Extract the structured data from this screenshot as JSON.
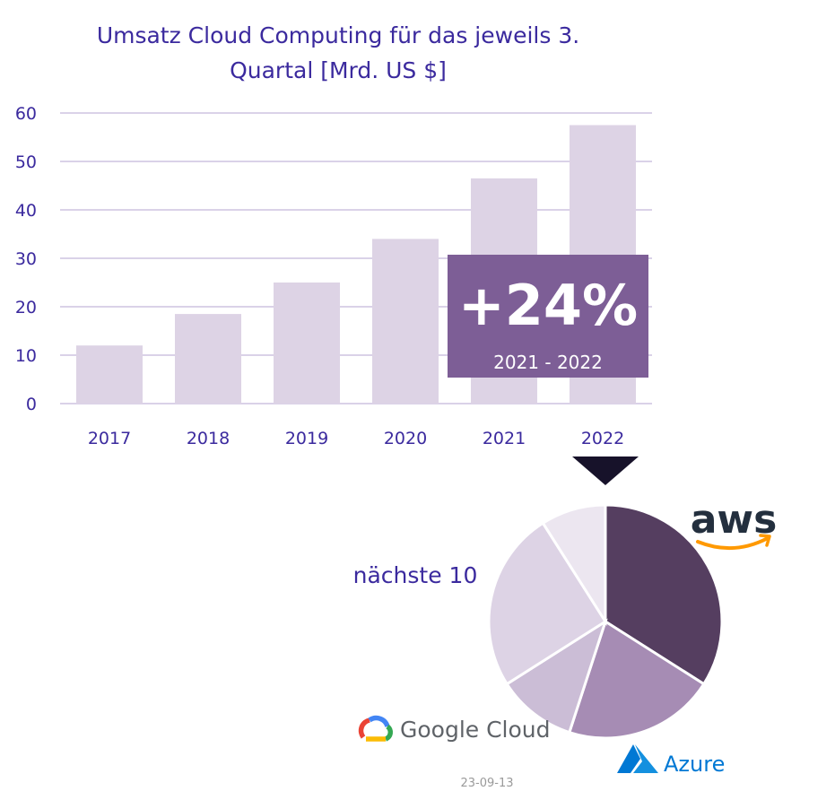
{
  "chart_data": [
    {
      "type": "bar",
      "title_lines": [
        "Umsatz Cloud Computing für das jeweils 3.",
        "Quartal [Mrd. US $]"
      ],
      "categories": [
        "2017",
        "2018",
        "2019",
        "2020",
        "2021",
        "2022"
      ],
      "values": [
        12,
        18.5,
        25,
        34,
        46.5,
        57.5
      ],
      "ylim": [
        0,
        60
      ],
      "yticks": [
        "0",
        "10",
        "20",
        "30",
        "40",
        "50",
        "60"
      ],
      "grid": true,
      "bar_color": "#ddd3e5",
      "gridline_color": "#cdc4e0",
      "callout": {
        "value": "+24%",
        "period": "2021 - 2022",
        "color": "#7d5e96"
      }
    },
    {
      "type": "pie",
      "slices": [
        {
          "label": "aws",
          "value": 34,
          "color": "#553e60"
        },
        {
          "label": "Azure",
          "value": 21,
          "color": "#a68cb4"
        },
        {
          "label": "Google Cloud",
          "value": 11,
          "color": "#cbbdd6"
        },
        {
          "label": "nächste 10",
          "value": 25,
          "color": "#ddd3e5"
        },
        {
          "label": "",
          "value": 9,
          "color": "#ece6f0"
        }
      ],
      "visible_text_label": "nächste 10",
      "logos": [
        "aws",
        "Google Cloud",
        "Azure"
      ]
    }
  ],
  "arrow_color": "#17122a",
  "date_stamp": "23-09-13"
}
